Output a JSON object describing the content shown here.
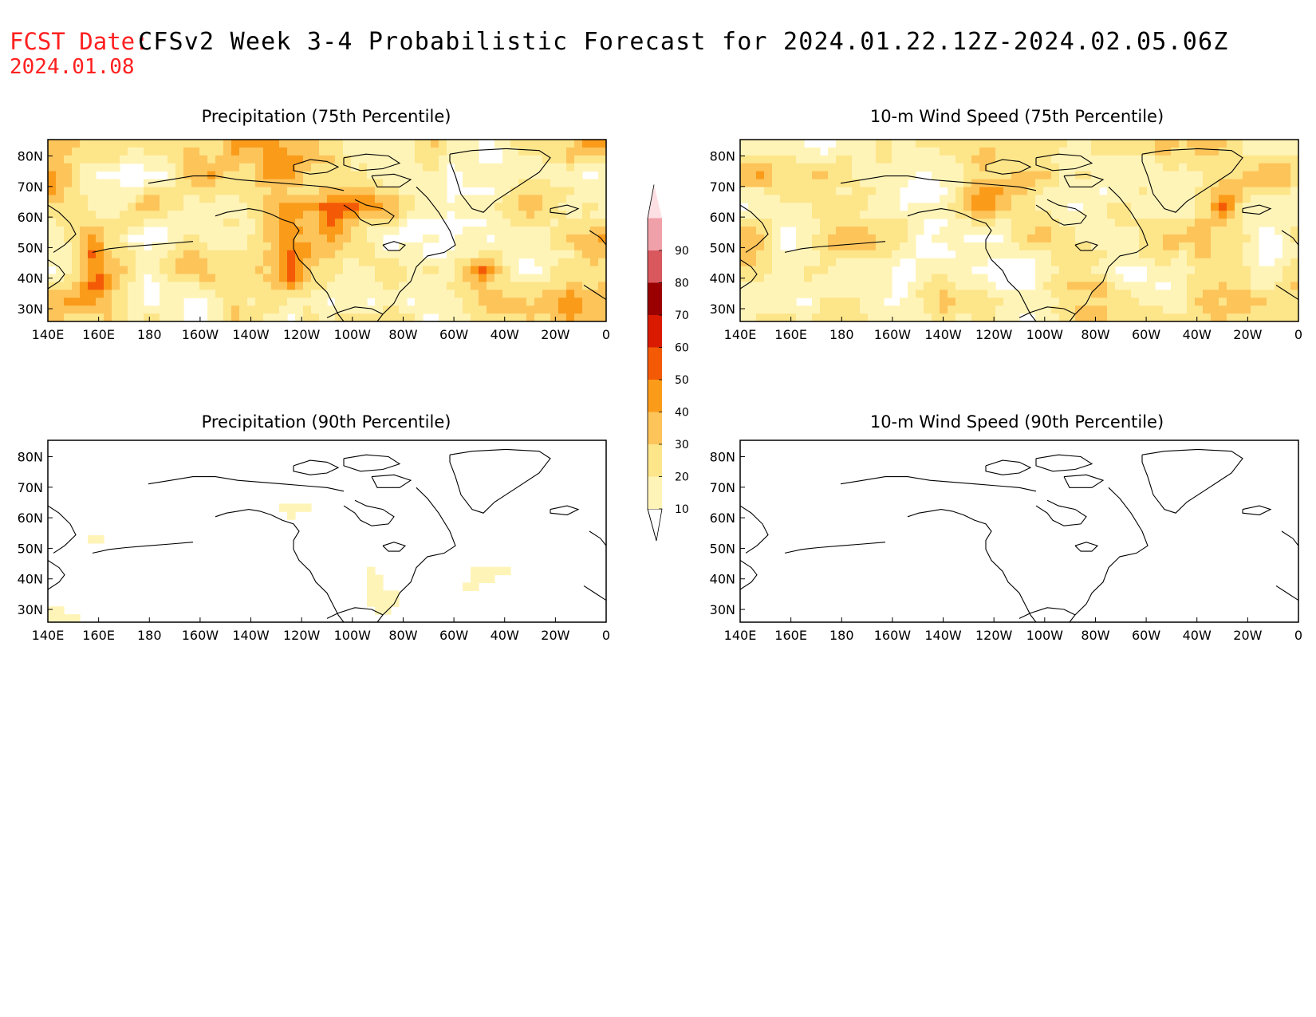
{
  "header": {
    "fcst_label": "FCST Date:",
    "fcst_date": "2024.01.08",
    "title": "CFSv2 Week 3-4 Probabilistic Forecast for 2024.01.22.12Z-2024.02.05.06Z"
  },
  "colors": {
    "header_red": "#ff2020",
    "levels": [
      "#ffffff",
      "#fff4b8",
      "#fde58a",
      "#fdc45a",
      "#fb9b1a",
      "#f45a06",
      "#d91a00",
      "#9a0000",
      "#d8585e",
      "#f0a0a8",
      "#fde0e4"
    ]
  },
  "colorbar": {
    "labels": [
      "10",
      "20",
      "30",
      "40",
      "50",
      "60",
      "70",
      "80",
      "90"
    ]
  },
  "axes": {
    "x_ticks": [
      "140E",
      "160E",
      "180",
      "160W",
      "140W",
      "120W",
      "100W",
      "80W",
      "60W",
      "40W",
      "20W",
      "0"
    ],
    "y_ticks": [
      "80N",
      "70N",
      "60N",
      "50N",
      "40N",
      "30N"
    ]
  },
  "panels": [
    {
      "title": "Precipitation (75th Percentile)",
      "intensity": 0.75
    },
    {
      "title": "10-m Wind Speed (75th Percentile)",
      "intensity": 0.7
    },
    {
      "title": "Precipitation (90th Percentile)",
      "intensity": 0.22
    },
    {
      "title": "10-m Wind Speed (90th Percentile)",
      "intensity": 0.18
    }
  ]
}
